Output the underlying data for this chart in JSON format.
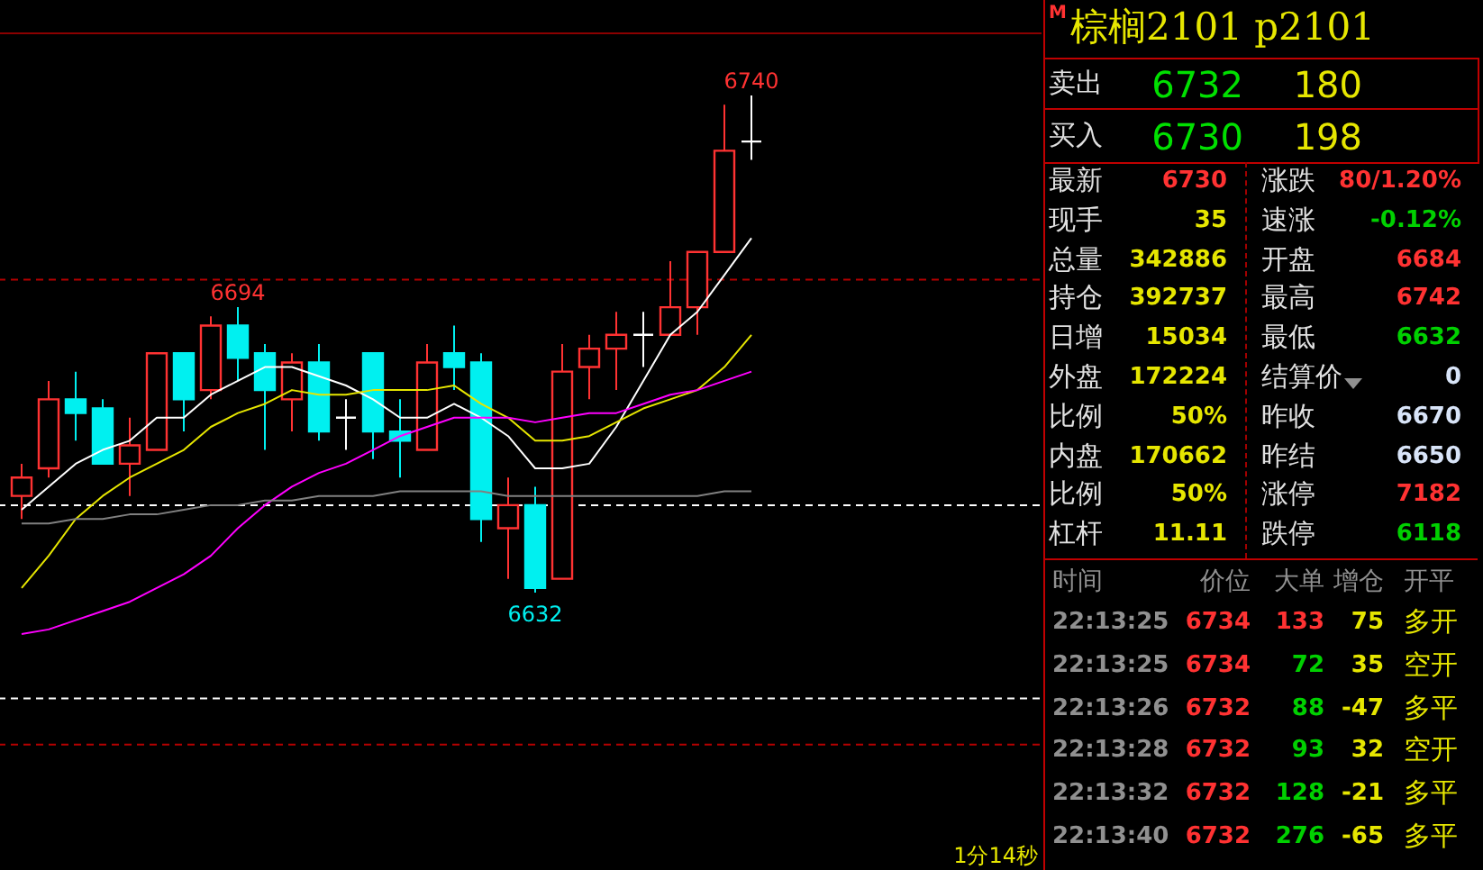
{
  "chart_data": [
    {
      "type": "candlestick",
      "tick_labels": false,
      "categories": [
        null,
        null,
        null,
        null,
        null,
        null,
        null,
        null,
        null,
        null,
        null,
        null,
        null,
        null,
        null,
        null,
        null,
        null,
        null,
        null,
        null,
        null,
        null,
        null,
        null,
        null,
        null,
        null
      ],
      "ohlc": [
        [
          6653,
          6660,
          6648,
          6657
        ],
        [
          6659,
          6678,
          6657,
          6674
        ],
        [
          6674,
          6680,
          6665,
          6671
        ],
        [
          6672,
          6674,
          6660,
          6660
        ],
        [
          6660,
          6670,
          6653,
          6664
        ],
        [
          6663,
          6684,
          6663,
          6684
        ],
        [
          6684,
          6684,
          6667,
          6674
        ],
        [
          6676,
          6692,
          6674,
          6690
        ],
        [
          6690,
          6694,
          6678,
          6683
        ],
        [
          6684,
          6686,
          6663,
          6676
        ],
        [
          6674,
          6684,
          6667,
          6682
        ],
        [
          6682,
          6686,
          6665,
          6667
        ],
        [
          6670,
          6674,
          6663,
          6670
        ],
        [
          6684,
          6684,
          6661,
          6667
        ],
        [
          6667,
          6674,
          6657,
          6665
        ],
        [
          6663,
          6686,
          6663,
          6682
        ],
        [
          6684,
          6690,
          6676,
          6681
        ],
        [
          6682,
          6684,
          6643,
          6648
        ],
        [
          6646,
          6657,
          6635,
          6651
        ],
        [
          6651,
          6655,
          6632,
          6633
        ],
        [
          6635,
          6686,
          6635,
          6680
        ],
        [
          6681,
          6688,
          6674,
          6685
        ],
        [
          6685,
          6693,
          6676,
          6688
        ],
        [
          6688,
          6693,
          6681,
          6688
        ],
        [
          6688,
          6704,
          6688,
          6694
        ],
        [
          6694,
          6706,
          6688,
          6706
        ],
        [
          6706,
          6738,
          6706,
          6728
        ],
        [
          6730,
          6740,
          6726,
          6730
        ]
      ],
      "series": [
        {
          "type": "line",
          "color": "#ffffff",
          "values": [
            6650,
            6655,
            6660,
            6663,
            6665,
            6670,
            6670,
            6675,
            6678,
            6681,
            6681,
            6679,
            6677,
            6674,
            6670,
            6670,
            6673,
            6670,
            6666,
            6659,
            6659,
            6660,
            6668,
            6678,
            6688,
            6693,
            6701,
            6709
          ]
        },
        {
          "type": "line",
          "color": "#e6e600",
          "values": [
            6633,
            6640,
            6648,
            6653,
            6657,
            6660,
            6663,
            6668,
            6671,
            6673,
            6676,
            6675,
            6675,
            6676,
            6676,
            6676,
            6677,
            6673,
            6670,
            6665,
            6665,
            6666,
            6669,
            6672,
            6674,
            6676,
            6681,
            6688
          ]
        },
        {
          "type": "line",
          "color": "#ff00ff",
          "values": [
            6623,
            6624,
            6626,
            6628,
            6630,
            6633,
            6636,
            6640,
            6646,
            6651,
            6655,
            6658,
            6660,
            6663,
            6666,
            6668,
            6670,
            6670,
            6670,
            6669,
            6670,
            6671,
            6671,
            6673,
            6675,
            6676,
            6678,
            6680
          ]
        },
        {
          "type": "line",
          "color": "#808080",
          "values": [
            6647,
            6647,
            6648,
            6648,
            6649,
            6649,
            6650,
            6651,
            6651,
            6652,
            6652,
            6653,
            6653,
            6653,
            6654,
            6654,
            6654,
            6654,
            6653,
            6653,
            6653,
            6653,
            6653,
            6653,
            6653,
            6653,
            6654,
            6654
          ]
        }
      ],
      "ref_lines": [
        {
          "axis": "y",
          "value": 6700,
          "color": "#b40000",
          "line_style": "dashed"
        },
        {
          "axis": "y",
          "value": 6651,
          "color": "#ffffff",
          "line_style": "dashed"
        },
        {
          "axis": "y",
          "value": 6609,
          "color": "#ffffff",
          "line_style": "dashed"
        },
        {
          "axis": "y",
          "value": 6599,
          "color": "#b40000",
          "line_style": "dashed"
        }
      ],
      "annotations": [
        {
          "text": "6740",
          "y": 6740
        },
        {
          "text": "6694",
          "y": 6694
        },
        {
          "text": "6632",
          "y": 6632
        },
        "1分14秒"
      ]
    },
    {
      "type": "other",
      "title": "棕榈2101  p2101",
      "annotations": [
        "M",
        "卖出",
        "6732",
        "180",
        "买入",
        "6730",
        "198",
        "最新",
        "6730",
        "涨跌",
        "80/1.20%",
        "现手",
        "35",
        "速涨",
        "-0.12%",
        "总量",
        "342886",
        "开盘",
        "6684",
        "持仓",
        "392737",
        "最高",
        "6742",
        "日增",
        "15034",
        "最低",
        "6632",
        "外盘",
        "172224",
        "结算价",
        "0",
        "比例",
        "50%",
        "昨收",
        "6670",
        "内盘",
        "170662",
        "昨结",
        "6650",
        "比例",
        "50%",
        "涨停",
        "7182",
        "杠杆",
        "11.11",
        "跌停",
        "6118",
        "时间",
        "价位",
        "大单",
        "增仓",
        "开平",
        "22:13:25",
        "6734",
        "133",
        "75",
        "多开",
        "22:13:25",
        "6734",
        "72",
        "35",
        "空开",
        "22:13:26",
        "6732",
        "88",
        "-47",
        "多平",
        "22:13:28",
        "6732",
        "93",
        "32",
        "空开",
        "22:13:32",
        "6732",
        "128",
        "-21",
        "多平",
        "22:13:40",
        "6732",
        "276",
        "-65",
        "多平"
      ]
    }
  ]
}
